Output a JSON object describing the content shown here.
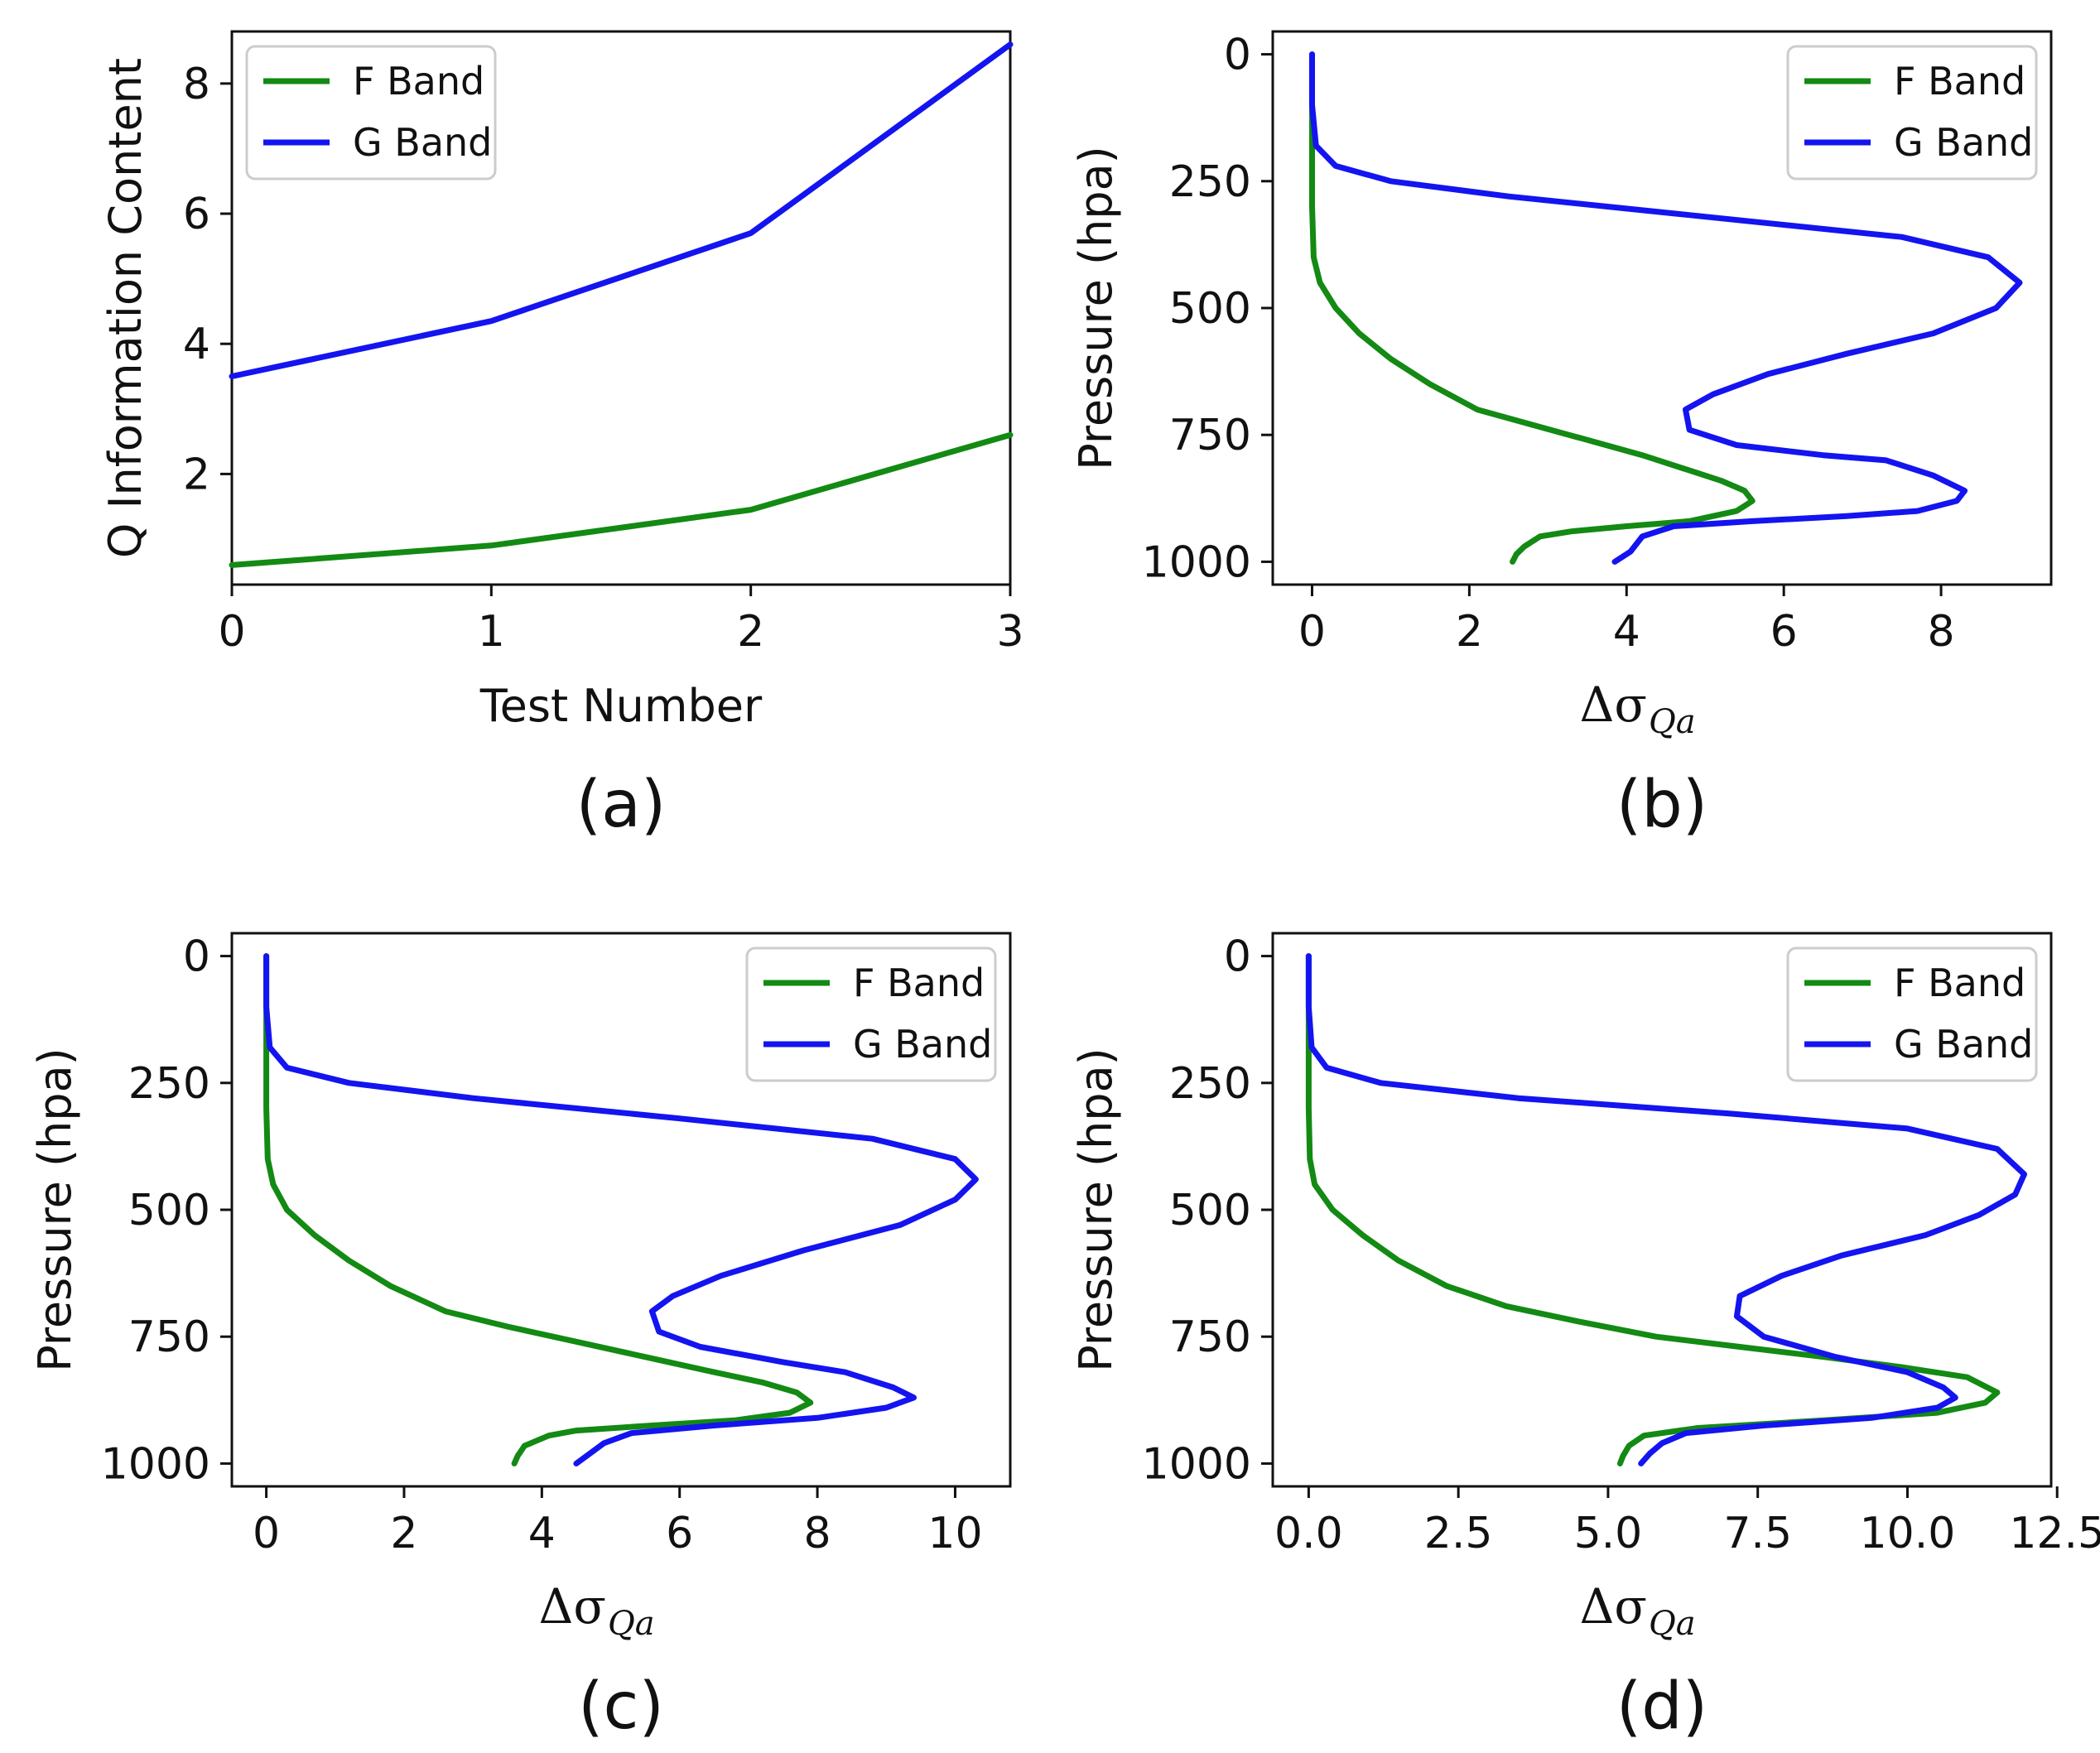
{
  "colors": {
    "f_band": "#138a13",
    "g_band": "#1414f0"
  },
  "chart_data": [
    {
      "id": "a",
      "type": "line",
      "caption": "(a)",
      "xlabel": "Test Number",
      "ylabel": "Q Information Content",
      "xlim": [
        0,
        3
      ],
      "ylim": [
        0.3,
        8.8
      ],
      "xticks": [
        0,
        1,
        2,
        3
      ],
      "xtick_labels": [
        "0",
        "1",
        "2",
        "3"
      ],
      "yticks": [
        2,
        4,
        6,
        8
      ],
      "ytick_labels": [
        "2",
        "4",
        "6",
        "8"
      ],
      "legend": {
        "position": "top-left",
        "entries": [
          "F Band",
          "G Band"
        ]
      },
      "series": [
        {
          "name": "F Band",
          "color": "#138a13",
          "x": [
            0,
            1,
            2,
            3
          ],
          "y": [
            0.6,
            0.9,
            1.45,
            2.6
          ]
        },
        {
          "name": "G Band",
          "color": "#1414f0",
          "x": [
            0,
            1,
            2,
            3
          ],
          "y": [
            3.5,
            4.35,
            5.7,
            8.6
          ]
        }
      ]
    },
    {
      "id": "b",
      "type": "line",
      "caption": "(b)",
      "xlabel_symbol": "Δσ",
      "xlabel_sub": "Qa",
      "ylabel": "Pressure (hpa)",
      "xlim": [
        -0.5,
        9.4
      ],
      "ylim": [
        1045,
        -45
      ],
      "xticks": [
        0,
        2,
        4,
        6,
        8
      ],
      "xtick_labels": [
        "0",
        "2",
        "4",
        "6",
        "8"
      ],
      "yticks": [
        0,
        250,
        500,
        750,
        1000
      ],
      "ytick_labels": [
        "0",
        "250",
        "500",
        "750",
        "1000"
      ],
      "legend": {
        "position": "top-right",
        "entries": [
          "F Band",
          "G Band"
        ]
      },
      "series": [
        {
          "name": "F Band",
          "color": "#138a13",
          "x": [
            0,
            0,
            0,
            0,
            0.02,
            0.1,
            0.3,
            0.6,
            1.0,
            1.5,
            2.1,
            2.8,
            3.5,
            4.2,
            4.8,
            5.2,
            5.5,
            5.6,
            5.4,
            4.8,
            4.0,
            3.3,
            2.9,
            2.7,
            2.6,
            2.55
          ],
          "y": [
            0,
            100,
            200,
            300,
            400,
            450,
            500,
            550,
            600,
            650,
            700,
            730,
            760,
            790,
            820,
            840,
            860,
            880,
            900,
            920,
            930,
            940,
            950,
            970,
            985,
            1000
          ]
        },
        {
          "name": "G Band",
          "color": "#1414f0",
          "x": [
            0,
            0,
            0.05,
            0.3,
            1.0,
            2.5,
            5.0,
            7.5,
            8.6,
            9.0,
            8.7,
            7.9,
            6.8,
            5.8,
            5.1,
            4.75,
            4.8,
            5.4,
            6.5,
            7.3,
            7.9,
            8.3,
            8.2,
            7.7,
            6.8,
            5.6,
            4.6,
            4.2,
            4.05,
            3.85
          ],
          "y": [
            0,
            100,
            180,
            220,
            250,
            280,
            320,
            360,
            400,
            450,
            500,
            550,
            590,
            630,
            670,
            700,
            740,
            770,
            790,
            800,
            830,
            860,
            880,
            900,
            910,
            920,
            930,
            950,
            980,
            1000
          ]
        }
      ]
    },
    {
      "id": "c",
      "type": "line",
      "caption": "(c)",
      "xlabel_symbol": "Δσ",
      "xlabel_sub": "Qa",
      "ylabel": "Pressure (hpa)",
      "xlim": [
        -0.5,
        10.8
      ],
      "ylim": [
        1045,
        -45
      ],
      "xticks": [
        0,
        2,
        4,
        6,
        8,
        10
      ],
      "xtick_labels": [
        "0",
        "2",
        "4",
        "6",
        "8",
        "10"
      ],
      "yticks": [
        0,
        250,
        500,
        750,
        1000
      ],
      "ytick_labels": [
        "0",
        "250",
        "500",
        "750",
        "1000"
      ],
      "legend": {
        "position": "top-right",
        "entries": [
          "F Band",
          "G Band"
        ]
      },
      "series": [
        {
          "name": "F Band",
          "color": "#138a13",
          "x": [
            0,
            0,
            0,
            0,
            0.02,
            0.1,
            0.3,
            0.7,
            1.2,
            1.8,
            2.6,
            3.5,
            4.5,
            5.5,
            6.5,
            7.2,
            7.7,
            7.9,
            7.6,
            6.8,
            5.6,
            4.5,
            4.1,
            3.75,
            3.65,
            3.6
          ],
          "y": [
            0,
            100,
            200,
            300,
            400,
            450,
            500,
            550,
            600,
            650,
            700,
            730,
            760,
            790,
            820,
            840,
            860,
            880,
            900,
            915,
            925,
            935,
            945,
            965,
            985,
            1000
          ]
        },
        {
          "name": "G Band",
          "color": "#1414f0",
          "x": [
            0,
            0,
            0.05,
            0.3,
            1.2,
            3.0,
            6.0,
            8.8,
            10.0,
            10.3,
            10.0,
            9.2,
            7.8,
            6.6,
            5.9,
            5.6,
            5.7,
            6.3,
            7.5,
            8.4,
            9.1,
            9.4,
            9.0,
            8.0,
            6.5,
            5.3,
            4.9,
            4.7,
            4.5
          ],
          "y": [
            0,
            100,
            180,
            220,
            250,
            280,
            320,
            360,
            400,
            440,
            480,
            530,
            580,
            630,
            670,
            700,
            740,
            770,
            800,
            820,
            850,
            870,
            890,
            910,
            925,
            940,
            960,
            980,
            1000
          ]
        }
      ]
    },
    {
      "id": "d",
      "type": "line",
      "caption": "(d)",
      "xlabel_symbol": "Δσ",
      "xlabel_sub": "Qa",
      "ylabel": "Pressure (hpa)",
      "xlim": [
        -0.6,
        12.4
      ],
      "ylim": [
        1045,
        -45
      ],
      "xticks": [
        0,
        2.5,
        5,
        7.5,
        10,
        12.5
      ],
      "xtick_labels": [
        "0.0",
        "2.5",
        "5.0",
        "7.5",
        "10.0",
        "12.5"
      ],
      "yticks": [
        0,
        250,
        500,
        750,
        1000
      ],
      "ytick_labels": [
        "0",
        "250",
        "500",
        "750",
        "1000"
      ],
      "legend": {
        "position": "top-right",
        "entries": [
          "F Band",
          "G Band"
        ]
      },
      "series": [
        {
          "name": "F Band",
          "color": "#138a13",
          "x": [
            0,
            0,
            0,
            0,
            0.02,
            0.1,
            0.4,
            0.9,
            1.5,
            2.3,
            3.3,
            4.5,
            5.8,
            7.2,
            8.6,
            9.9,
            11.0,
            11.5,
            11.3,
            10.5,
            8.6,
            6.5,
            5.6,
            5.35,
            5.25,
            5.2
          ],
          "y": [
            0,
            100,
            200,
            300,
            400,
            450,
            500,
            550,
            600,
            650,
            690,
            720,
            750,
            770,
            790,
            810,
            830,
            860,
            880,
            900,
            915,
            930,
            945,
            965,
            985,
            1000
          ]
        },
        {
          "name": "G Band",
          "color": "#1414f0",
          "x": [
            0,
            0,
            0.05,
            0.3,
            1.2,
            3.5,
            7.0,
            10.0,
            11.5,
            11.95,
            11.8,
            11.2,
            10.3,
            8.9,
            7.9,
            7.2,
            7.15,
            7.6,
            8.8,
            10.0,
            10.6,
            10.8,
            10.5,
            9.4,
            7.6,
            6.3,
            5.9,
            5.7,
            5.55
          ],
          "y": [
            0,
            100,
            180,
            220,
            250,
            280,
            310,
            340,
            380,
            430,
            470,
            510,
            550,
            590,
            630,
            670,
            710,
            750,
            790,
            820,
            850,
            870,
            890,
            910,
            925,
            940,
            960,
            980,
            1000
          ]
        }
      ]
    }
  ]
}
